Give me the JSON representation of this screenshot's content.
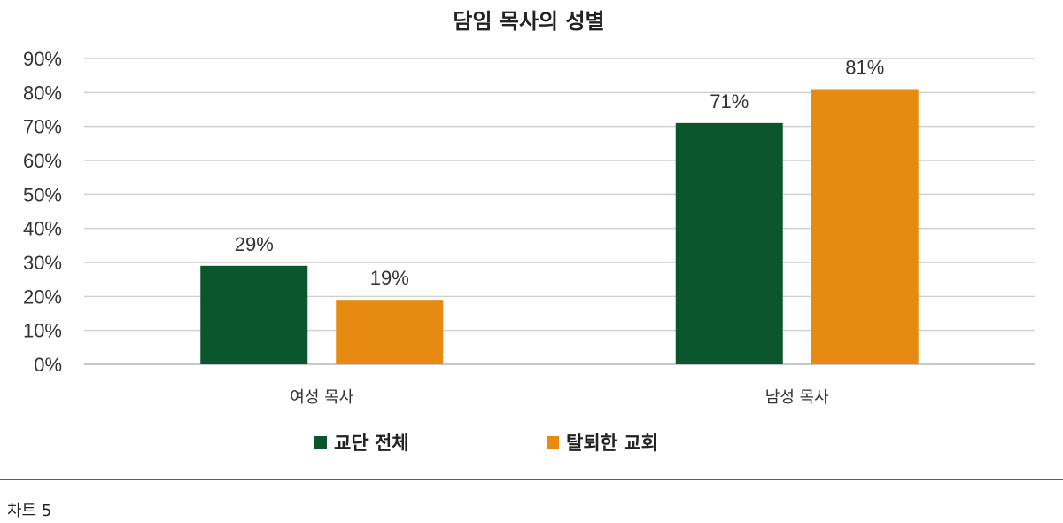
{
  "chart_data": {
    "type": "bar",
    "title": "담임 목사의 성별",
    "categories": [
      "여성 목사",
      "남성 목사"
    ],
    "series": [
      {
        "name": "교단 전체",
        "values": [
          29,
          71
        ],
        "color": "#0b562d"
      },
      {
        "name": "탈퇴한 교회",
        "values": [
          19,
          81
        ],
        "color": "#e68a12"
      }
    ],
    "value_suffix": "%",
    "ylim": [
      0,
      90
    ],
    "yticks": [
      0,
      10,
      20,
      30,
      40,
      50,
      60,
      70,
      80,
      90
    ],
    "grid": true,
    "legend_position": "bottom",
    "xlabel": "",
    "ylabel": ""
  },
  "caption": "차트 5"
}
